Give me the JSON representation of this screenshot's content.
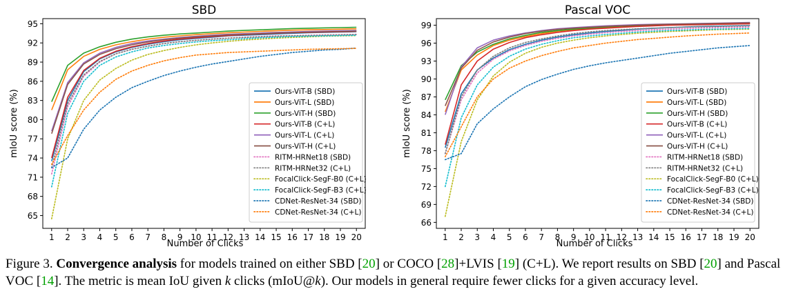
{
  "chart_data": [
    {
      "type": "line",
      "title": "SBD",
      "xlabel": "Number of Clicks",
      "ylabel": "mIoU score (%)",
      "xlim": [
        0.45,
        20.55
      ],
      "ylim": [
        63,
        95.8
      ],
      "yticks": [
        "65",
        "68",
        "71",
        "74",
        "77",
        "80",
        "83",
        "86",
        "89",
        "92",
        "95"
      ],
      "legend_position": "lower-right",
      "x": [
        1,
        2,
        3,
        4,
        5,
        6,
        7,
        8,
        9,
        10,
        11,
        12,
        13,
        14,
        15,
        16,
        17,
        18,
        19,
        20
      ],
      "series": [
        {
          "name": "Ours-ViT-B (SBD)",
          "values": [
            73.5,
            83.0,
            87.5,
            89.5,
            90.6,
            91.3,
            91.8,
            92.2,
            92.5,
            92.7,
            92.9,
            93.1,
            93.2,
            93.3,
            93.4,
            93.5,
            93.6,
            93.65,
            93.7,
            93.75
          ]
        },
        {
          "name": "Ours-ViT-L (SBD)",
          "values": [
            81.5,
            87.8,
            89.9,
            91.0,
            91.7,
            92.2,
            92.6,
            92.9,
            93.1,
            93.3,
            93.45,
            93.6,
            93.7,
            93.8,
            93.9,
            94.0,
            94.05,
            94.1,
            94.15,
            94.2
          ]
        },
        {
          "name": "Ours-ViT-H (SBD)",
          "values": [
            82.8,
            88.5,
            90.4,
            91.4,
            92.1,
            92.6,
            92.95,
            93.2,
            93.4,
            93.55,
            93.7,
            93.85,
            93.95,
            94.05,
            94.15,
            94.25,
            94.3,
            94.35,
            94.4,
            94.45
          ]
        },
        {
          "name": "Ours-ViT-B (C+L)",
          "values": [
            74.0,
            83.5,
            87.7,
            89.6,
            90.7,
            91.4,
            91.9,
            92.3,
            92.6,
            92.8,
            93.0,
            93.15,
            93.3,
            93.4,
            93.5,
            93.6,
            93.65,
            93.7,
            93.75,
            93.8
          ]
        },
        {
          "name": "Ours-ViT-L (C+L)",
          "values": [
            78.2,
            85.8,
            88.9,
            90.4,
            91.3,
            91.9,
            92.3,
            92.6,
            92.85,
            93.05,
            93.2,
            93.35,
            93.45,
            93.55,
            93.65,
            93.72,
            93.8,
            93.85,
            93.9,
            93.95
          ]
        },
        {
          "name": "Ours-ViT-H (C+L)",
          "values": [
            77.8,
            85.5,
            88.7,
            90.2,
            91.1,
            91.7,
            92.15,
            92.5,
            92.75,
            92.95,
            93.1,
            93.25,
            93.35,
            93.45,
            93.55,
            93.62,
            93.7,
            93.75,
            93.8,
            93.85
          ]
        },
        {
          "name": "RITM-HRNet18 (SBD)",
          "values": [
            71.5,
            82.0,
            86.8,
            89.0,
            90.3,
            91.0,
            91.5,
            91.9,
            92.2,
            92.4,
            92.6,
            92.75,
            92.9,
            93.0,
            93.1,
            93.15,
            93.2,
            93.25,
            93.3,
            93.35
          ]
        },
        {
          "name": "RITM-HRNet32 (C+L)",
          "values": [
            72.5,
            82.5,
            87.0,
            89.1,
            90.3,
            91.0,
            91.5,
            91.9,
            92.2,
            92.4,
            92.6,
            92.75,
            92.85,
            92.95,
            93.05,
            93.1,
            93.15,
            93.2,
            93.25,
            93.3
          ]
        },
        {
          "name": "FocalClick-SegF-B0 (C+L)",
          "values": [
            64.5,
            77.0,
            83.0,
            86.2,
            88.0,
            89.3,
            90.2,
            90.8,
            91.3,
            91.7,
            92.0,
            92.25,
            92.45,
            92.6,
            92.75,
            92.85,
            92.95,
            93.05,
            93.1,
            93.15
          ]
        },
        {
          "name": "FocalClick-SegF-B3 (C+L)",
          "values": [
            69.5,
            81.0,
            86.0,
            88.5,
            89.8,
            90.6,
            91.2,
            91.6,
            91.9,
            92.15,
            92.35,
            92.5,
            92.65,
            92.8,
            92.9,
            93.0,
            93.05,
            93.1,
            93.15,
            93.2
          ]
        },
        {
          "name": "CDNet-ResNet-34 (SBD)",
          "values": [
            72.5,
            74.0,
            78.5,
            81.5,
            83.5,
            85.0,
            86.0,
            86.9,
            87.6,
            88.2,
            88.7,
            89.1,
            89.5,
            89.9,
            90.2,
            90.5,
            90.7,
            90.9,
            91.0,
            91.2
          ]
        },
        {
          "name": "CDNet-ResNet-34 (C+L)",
          "values": [
            73.0,
            77.5,
            81.5,
            84.3,
            86.3,
            87.6,
            88.5,
            89.2,
            89.7,
            90.1,
            90.3,
            90.5,
            90.6,
            90.7,
            90.8,
            90.9,
            91.0,
            91.05,
            91.1,
            91.15
          ]
        }
      ]
    },
    {
      "type": "line",
      "title": "Pascal VOC",
      "xlabel": "Number of Clicks",
      "ylabel": "mIoU score (%)",
      "xlim": [
        0.45,
        20.55
      ],
      "ylim": [
        65,
        100.1
      ],
      "yticks": [
        "66",
        "69",
        "72",
        "75",
        "78",
        "81",
        "84",
        "87",
        "90",
        "93",
        "96",
        "99"
      ],
      "legend_position": "lower-right",
      "x": [
        1,
        2,
        3,
        4,
        5,
        6,
        7,
        8,
        9,
        10,
        11,
        12,
        13,
        14,
        15,
        16,
        17,
        18,
        19,
        20
      ],
      "series": [
        {
          "name": "Ours-ViT-B (SBD)",
          "values": [
            78.5,
            87.5,
            91.5,
            93.5,
            94.9,
            95.8,
            96.5,
            97.0,
            97.4,
            97.7,
            97.95,
            98.15,
            98.35,
            98.5,
            98.6,
            98.7,
            98.8,
            98.85,
            98.9,
            98.95
          ]
        },
        {
          "name": "Ours-ViT-L (SBD)",
          "values": [
            84.5,
            91.5,
            94.0,
            95.6,
            96.5,
            97.1,
            97.6,
            98.0,
            98.25,
            98.45,
            98.6,
            98.75,
            98.85,
            98.95,
            99.0,
            99.05,
            99.1,
            99.15,
            99.2,
            99.25
          ]
        },
        {
          "name": "Ours-ViT-H (SBD)",
          "values": [
            86.5,
            92.2,
            94.5,
            95.8,
            96.7,
            97.3,
            97.8,
            98.1,
            98.35,
            98.55,
            98.7,
            98.85,
            98.95,
            99.05,
            99.1,
            99.15,
            99.2,
            99.25,
            99.3,
            99.35
          ]
        },
        {
          "name": "Ours-ViT-B (C+L)",
          "values": [
            79.0,
            89.0,
            93.0,
            95.0,
            96.1,
            96.9,
            97.4,
            97.8,
            98.1,
            98.35,
            98.5,
            98.65,
            98.8,
            98.9,
            99.0,
            99.05,
            99.1,
            99.15,
            99.2,
            99.25
          ]
        },
        {
          "name": "Ours-ViT-L (C+L)",
          "values": [
            84.0,
            92.0,
            95.2,
            96.5,
            97.2,
            97.7,
            98.1,
            98.4,
            98.6,
            98.75,
            98.9,
            99.0,
            99.1,
            99.15,
            99.2,
            99.25,
            99.3,
            99.35,
            99.4,
            99.45
          ]
        },
        {
          "name": "Ours-ViT-H (C+L)",
          "values": [
            85.5,
            91.8,
            94.8,
            96.2,
            97.0,
            97.6,
            98.0,
            98.3,
            98.5,
            98.65,
            98.8,
            98.9,
            99.0,
            99.1,
            99.15,
            99.2,
            99.25,
            99.3,
            99.35,
            99.4
          ]
        },
        {
          "name": "RITM-HRNet18 (SBD)",
          "values": [
            77.5,
            86.5,
            91.0,
            93.3,
            94.7,
            95.6,
            96.3,
            96.8,
            97.2,
            97.5,
            97.75,
            97.95,
            98.1,
            98.25,
            98.35,
            98.45,
            98.55,
            98.6,
            98.65,
            98.7
          ]
        },
        {
          "name": "RITM-HRNet32 (C+L)",
          "values": [
            77.5,
            87.0,
            91.5,
            93.8,
            95.2,
            96.1,
            96.7,
            97.2,
            97.6,
            97.9,
            98.1,
            98.25,
            98.4,
            98.5,
            98.6,
            98.7,
            98.75,
            98.8,
            98.85,
            98.9
          ]
        },
        {
          "name": "FocalClick-SegF-B0 (C+L)",
          "values": [
            67.0,
            79.5,
            86.5,
            90.5,
            92.8,
            94.3,
            95.3,
            96.0,
            96.5,
            96.9,
            97.2,
            97.45,
            97.65,
            97.8,
            97.95,
            98.05,
            98.15,
            98.25,
            98.3,
            98.35
          ]
        },
        {
          "name": "FocalClick-SegF-B3 (C+L)",
          "values": [
            72.0,
            83.5,
            89.0,
            92.0,
            93.8,
            95.0,
            95.8,
            96.4,
            96.9,
            97.2,
            97.45,
            97.65,
            97.85,
            98.0,
            98.1,
            98.2,
            98.3,
            98.35,
            98.4,
            98.45
          ]
        },
        {
          "name": "CDNet-ResNet-34 (SBD)",
          "values": [
            76.5,
            77.5,
            82.5,
            85.0,
            87.0,
            88.7,
            89.9,
            90.8,
            91.6,
            92.2,
            92.7,
            93.1,
            93.5,
            93.9,
            94.3,
            94.6,
            94.9,
            95.2,
            95.4,
            95.6
          ]
        },
        {
          "name": "CDNet-ResNet-34 (C+L)",
          "values": [
            77.0,
            82.0,
            87.0,
            90.0,
            91.8,
            93.0,
            93.9,
            94.6,
            95.2,
            95.6,
            96.0,
            96.3,
            96.6,
            96.8,
            97.0,
            97.2,
            97.35,
            97.5,
            97.6,
            97.7
          ]
        }
      ]
    }
  ],
  "styles": {
    "Ours-ViT-B (SBD)": {
      "color": "#1f77b4",
      "dash": "solid"
    },
    "Ours-ViT-L (SBD)": {
      "color": "#ff7f0e",
      "dash": "solid"
    },
    "Ours-ViT-H (SBD)": {
      "color": "#2ca02c",
      "dash": "solid"
    },
    "Ours-ViT-B (C+L)": {
      "color": "#d62728",
      "dash": "solid"
    },
    "Ours-ViT-L (C+L)": {
      "color": "#9467bd",
      "dash": "solid"
    },
    "Ours-ViT-H (C+L)": {
      "color": "#8c564b",
      "dash": "solid"
    },
    "RITM-HRNet18 (SBD)": {
      "color": "#e377c2",
      "dash": "dotted"
    },
    "RITM-HRNet32 (C+L)": {
      "color": "#7f7f7f",
      "dash": "dotted"
    },
    "FocalClick-SegF-B0 (C+L)": {
      "color": "#bcbd22",
      "dash": "dotted"
    },
    "FocalClick-SegF-B3 (C+L)": {
      "color": "#17becf",
      "dash": "dotted"
    },
    "CDNet-ResNet-34 (SBD)": {
      "color": "#1f77b4",
      "dash": "dotted"
    },
    "CDNet-ResNet-34 (C+L)": {
      "color": "#ff7f0e",
      "dash": "dotted"
    }
  },
  "caption": {
    "label": "Figure 3.",
    "bold": "Convergence analysis",
    "t1": " for models trained on either SBD [",
    "r1": "20",
    "t2": "] or COCO [",
    "r2": "28",
    "t3": "]+LVIS [",
    "r3": "19",
    "t4": "] (C+L). We report results on SBD [",
    "r4": "20",
    "t5": "] and Pascal VOC [",
    "r5": "14",
    "t6": "]. The metric is mean IoU given ",
    "k1": "k",
    "t7": " clicks (mIoU@",
    "k2": "k",
    "t8": "). Our models in general require fewer clicks for a given accuracy level."
  }
}
